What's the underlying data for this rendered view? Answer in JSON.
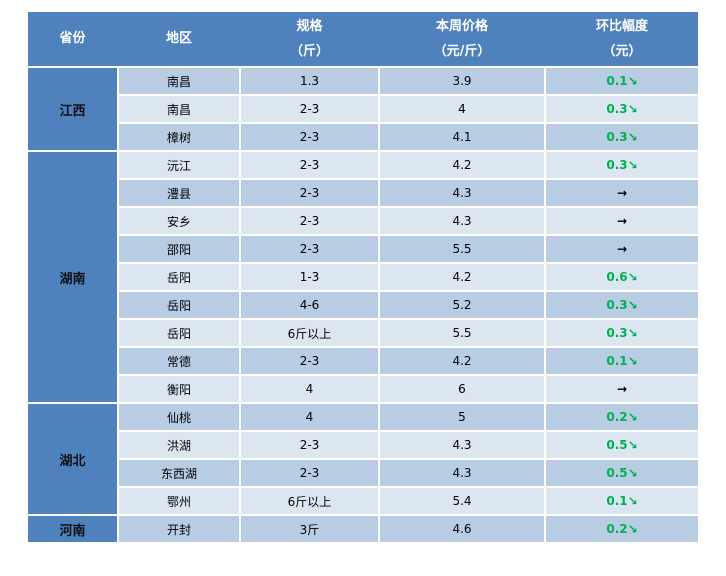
{
  "colors": {
    "header_blue": "#4F81BD",
    "row_dark": "#B8CCE4",
    "row_light": "#DCE6F1",
    "gridline_white": "#FFFFFF",
    "decrease_green": "#00B050",
    "flat_black": "#000000"
  },
  "chart_data": {
    "type": "table",
    "title": "",
    "legend_position": "none",
    "grid": "white 2px gridlines between cells",
    "columns": [
      "省份",
      "地区",
      "规格（斤）",
      "本周价格（元/斤）",
      "环比幅度（元）"
    ],
    "header": {
      "province": "省份",
      "region": "地区",
      "spec_line1": "规格",
      "spec_line2": "（斤）",
      "price_line1": "本周价格",
      "price_line2": "（元/斤）",
      "change_line1": "环比幅度",
      "change_line2": "（元）"
    },
    "provinces": [
      {
        "name": "江西",
        "row_start": 1,
        "row_span": 3
      },
      {
        "name": "湖南",
        "row_start": 4,
        "row_span": 9
      },
      {
        "name": "湖北",
        "row_start": 13,
        "row_span": 4
      },
      {
        "name": "河南",
        "row_start": 17,
        "row_span": 1
      }
    ],
    "rows": [
      {
        "province": "江西",
        "region": "南昌",
        "spec": "1.3",
        "price": "3.9",
        "change": "0.1↘",
        "change_value": 0.1,
        "trend": "down"
      },
      {
        "province": "江西",
        "region": "南昌",
        "spec": "2-3",
        "price": "4",
        "change": "0.3↘",
        "change_value": 0.3,
        "trend": "down"
      },
      {
        "province": "江西",
        "region": "樟树",
        "spec": "2-3",
        "price": "4.1",
        "change": "0.3↘",
        "change_value": 0.3,
        "trend": "down"
      },
      {
        "province": "湖南",
        "region": "沅江",
        "spec": "2-3",
        "price": "4.2",
        "change": "0.3↘",
        "change_value": 0.3,
        "trend": "down"
      },
      {
        "province": "湖南",
        "region": "澧县",
        "spec": "2-3",
        "price": "4.3",
        "change": "→",
        "change_value": 0,
        "trend": "flat"
      },
      {
        "province": "湖南",
        "region": "安乡",
        "spec": "2-3",
        "price": "4.3",
        "change": "→",
        "change_value": 0,
        "trend": "flat"
      },
      {
        "province": "湖南",
        "region": "邵阳",
        "spec": "2-3",
        "price": "5.5",
        "change": "→",
        "change_value": 0,
        "trend": "flat"
      },
      {
        "province": "湖南",
        "region": "岳阳",
        "spec": "1-3",
        "price": "4.2",
        "change": "0.6↘",
        "change_value": 0.6,
        "trend": "down"
      },
      {
        "province": "湖南",
        "region": "岳阳",
        "spec": "4-6",
        "price": "5.2",
        "change": "0.3↘",
        "change_value": 0.3,
        "trend": "down"
      },
      {
        "province": "湖南",
        "region": "岳阳",
        "spec": "6斤以上",
        "price": "5.5",
        "change": "0.3↘",
        "change_value": 0.3,
        "trend": "down"
      },
      {
        "province": "湖南",
        "region": "常德",
        "spec": "2-3",
        "price": "4.2",
        "change": "0.1↘",
        "change_value": 0.1,
        "trend": "down"
      },
      {
        "province": "湖南",
        "region": "衡阳",
        "spec": "4",
        "price": "6",
        "change": "→",
        "change_value": 0,
        "trend": "flat"
      },
      {
        "province": "湖北",
        "region": "仙桃",
        "spec": "4",
        "price": "5",
        "change": "0.2↘",
        "change_value": 0.2,
        "trend": "down"
      },
      {
        "province": "湖北",
        "region": "洪湖",
        "spec": "2-3",
        "price": "4.3",
        "change": "0.5↘",
        "change_value": 0.5,
        "trend": "down"
      },
      {
        "province": "湖北",
        "region": "东西湖",
        "spec": "2-3",
        "price": "4.3",
        "change": "0.5↘",
        "change_value": 0.5,
        "trend": "down"
      },
      {
        "province": "湖北",
        "region": "鄂州",
        "spec": "6斤以上",
        "price": "5.4",
        "change": "0.1↘",
        "change_value": 0.1,
        "trend": "down"
      },
      {
        "province": "河南",
        "region": "开封",
        "spec": "3斤",
        "price": "4.6",
        "change": "0.2↘",
        "change_value": 0.2,
        "trend": "down"
      }
    ]
  }
}
